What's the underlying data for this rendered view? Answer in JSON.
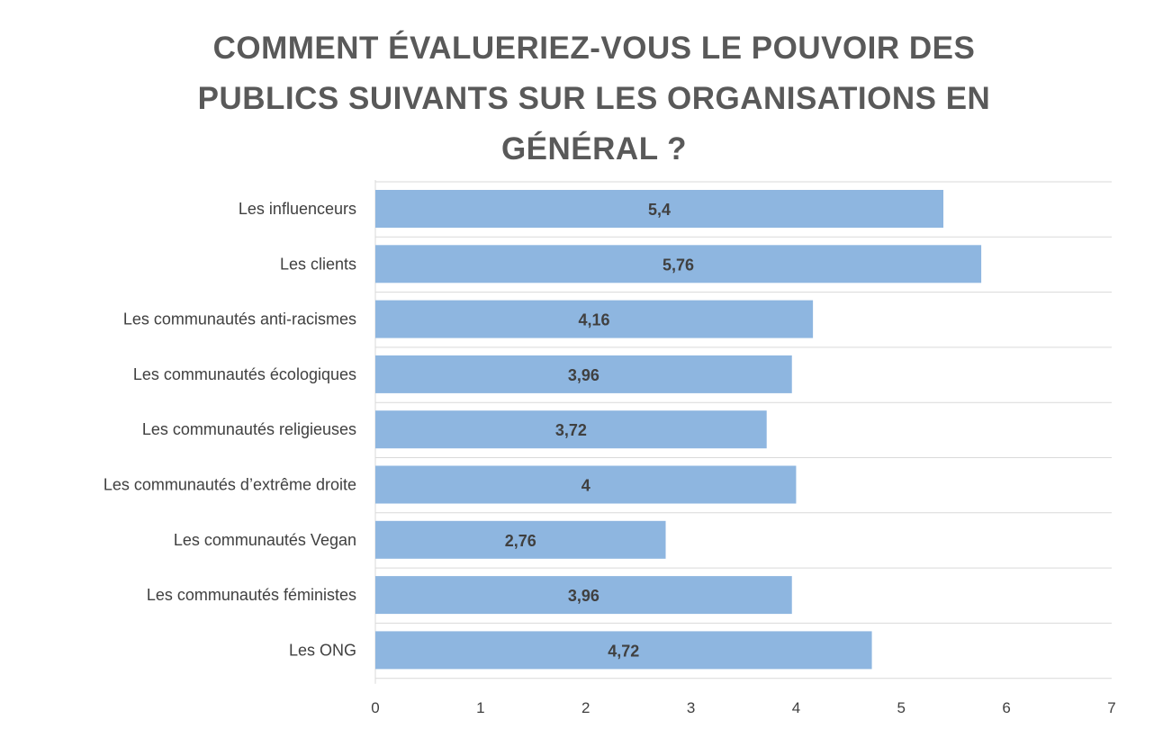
{
  "chart_data": {
    "type": "bar",
    "orientation": "horizontal",
    "title": "COMMENT ÉVALUERIEZ-VOUS LE POUVOIR DES PUBLICS SUIVANTS SUR LES ORGANISATIONS EN GÉNÉRAL ?",
    "categories": [
      "Les influenceurs",
      "Les clients",
      "Les communautés anti-racismes",
      "Les communautés écologiques",
      "Les communautés religieuses",
      "Les communautés d’extrême droite",
      "Les communautés Vegan",
      "Les communautés féministes",
      "Les ONG"
    ],
    "values": [
      5.4,
      5.76,
      4.16,
      3.96,
      3.72,
      4,
      2.76,
      3.96,
      4.72
    ],
    "data_labels": [
      "5,4",
      "5,76",
      "4,16",
      "3,96",
      "3,72",
      "4",
      "2,76",
      "3,96",
      "4,72"
    ],
    "xlim": [
      0,
      7
    ],
    "x_ticks": [
      "0",
      "1",
      "2",
      "3",
      "4",
      "5",
      "6",
      "7"
    ],
    "xlabel": "",
    "ylabel": "",
    "grid": true,
    "legend": "none",
    "bar_color": "#8eb6e0"
  }
}
